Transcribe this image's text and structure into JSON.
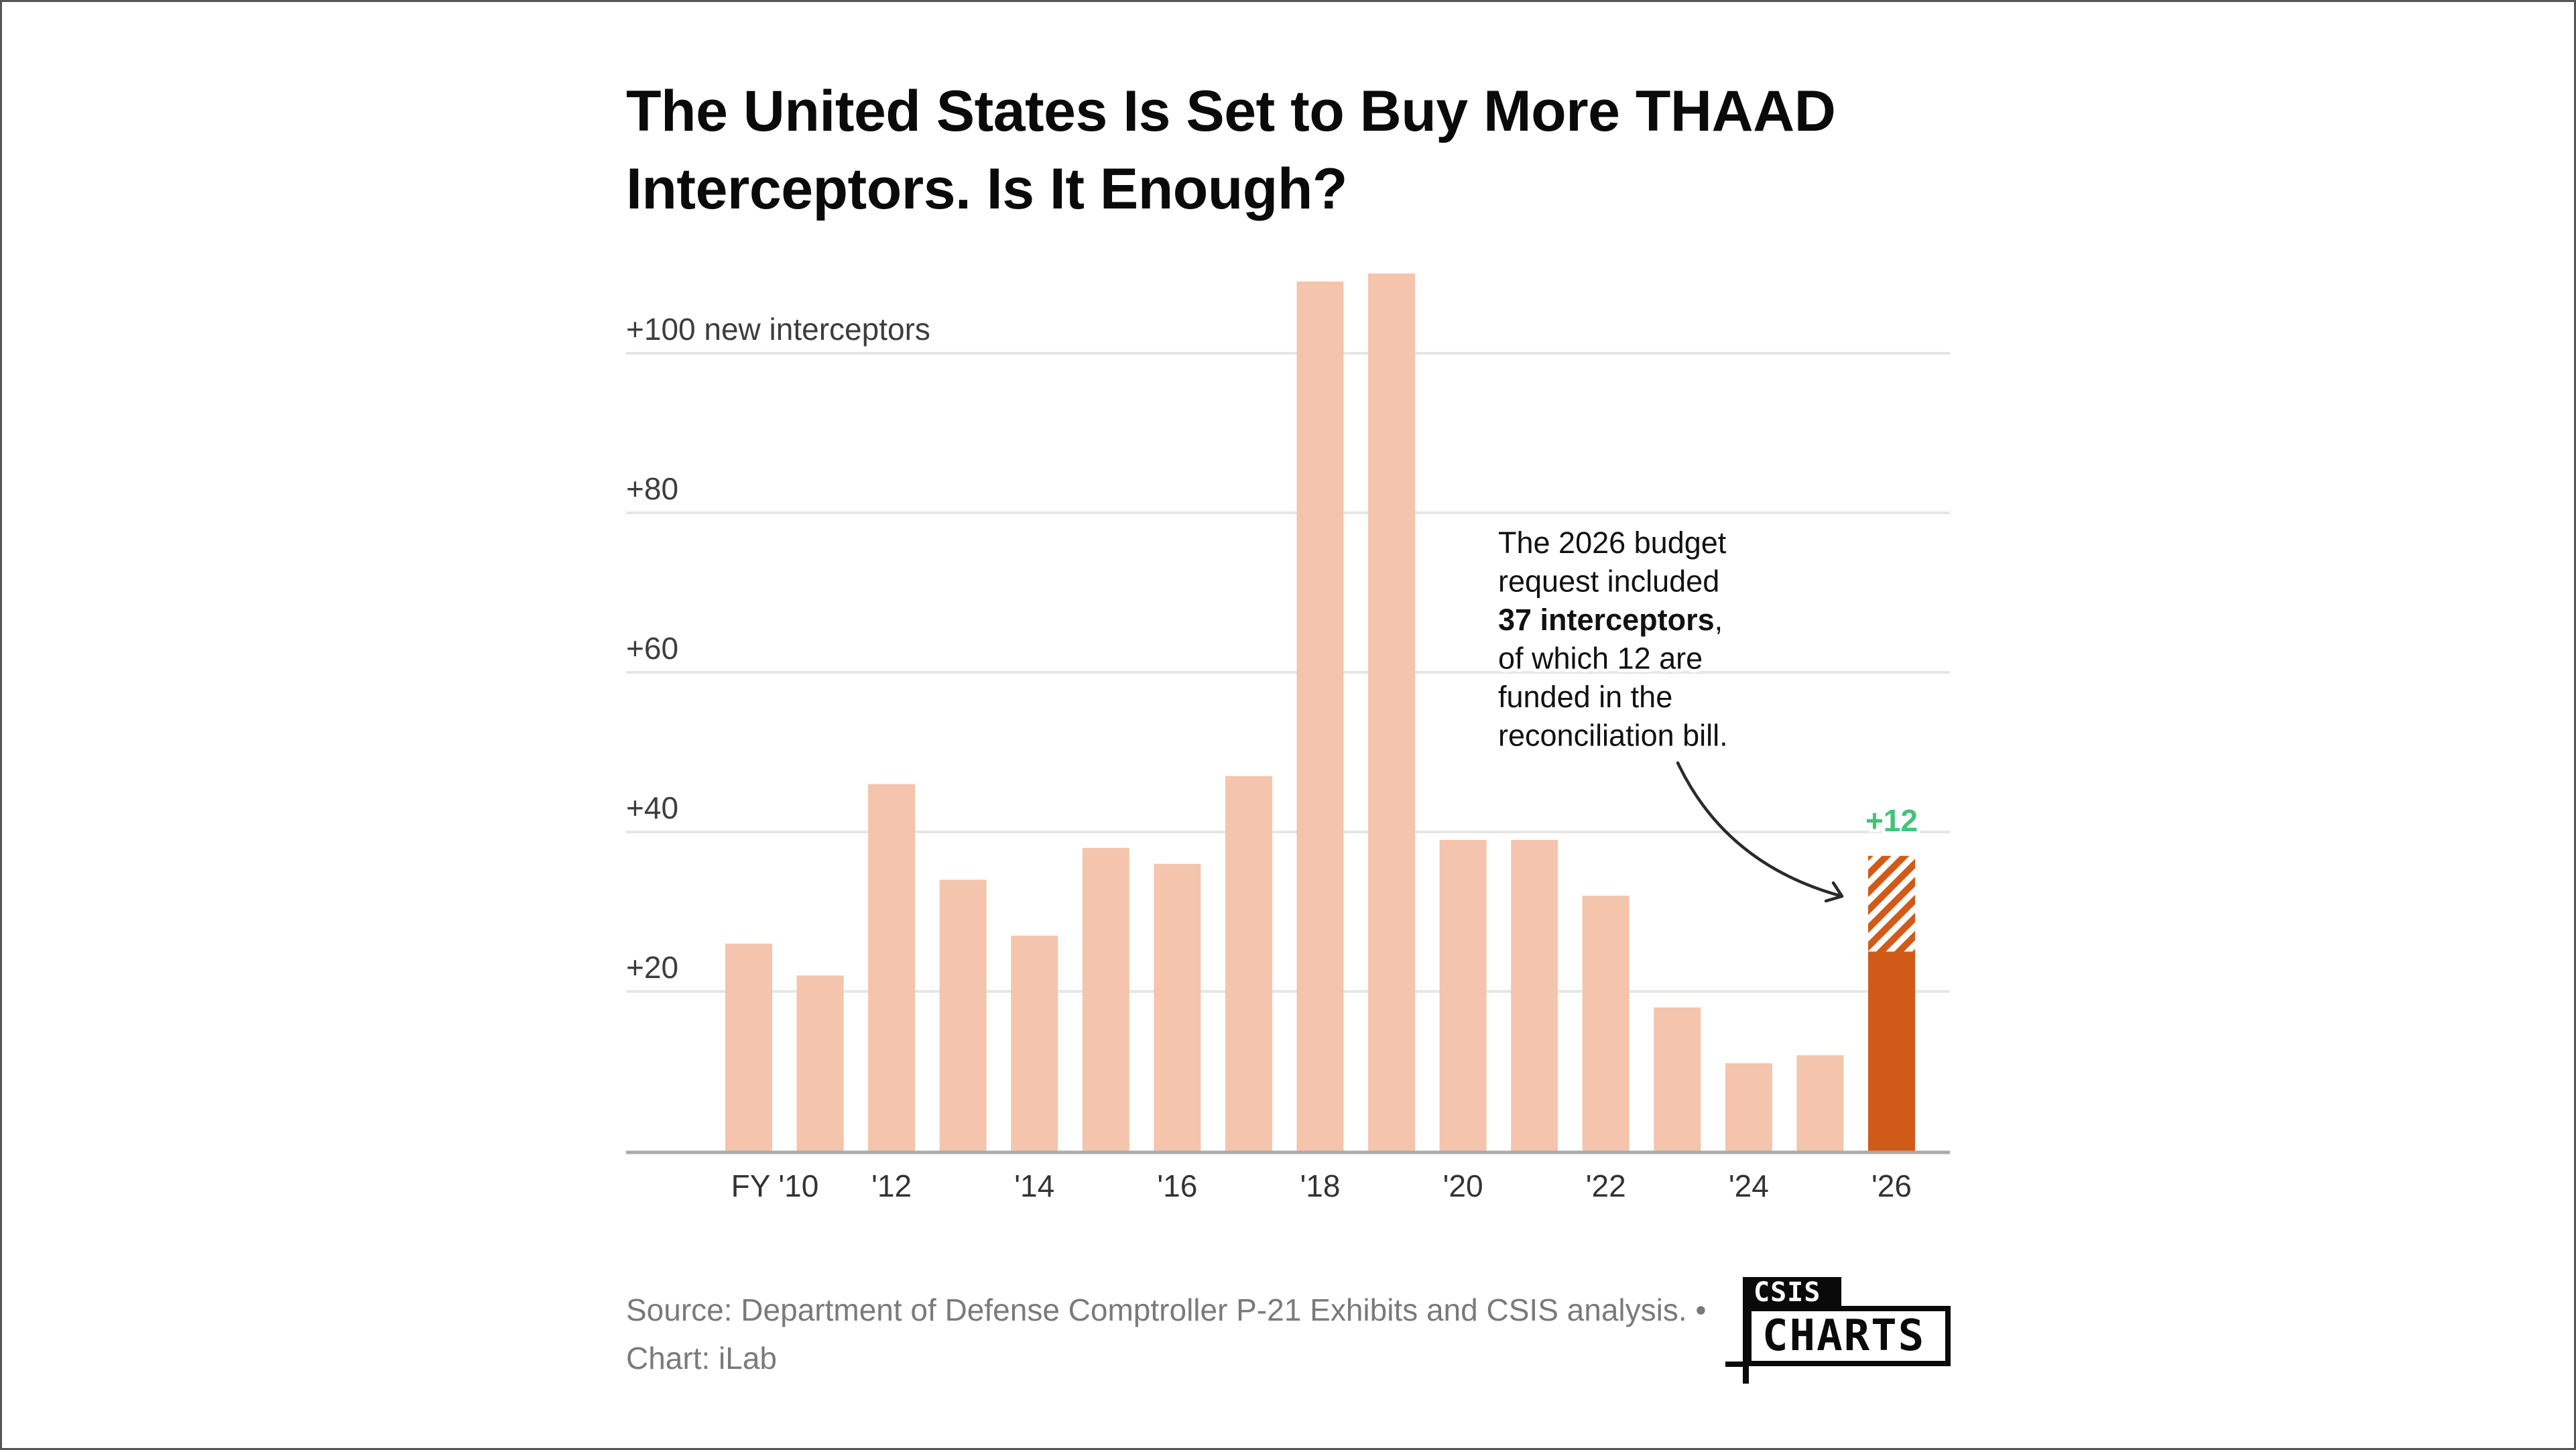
{
  "title": {
    "line1": "The United States Is Set to Buy More THAAD",
    "line2": "Interceptors. Is It Enough?"
  },
  "colors": {
    "bar": "#F4C4AC",
    "highlight_bar": "#D05A17",
    "delta_label": "#45C27A",
    "gridline": "#E6E6E6",
    "axis": "#AAAAAA",
    "arrow": "#2a2a2a"
  },
  "chart_data": {
    "type": "bar",
    "title": "The United States Is Set to Buy More THAAD Interceptors. Is It Enough?",
    "xlabel": "",
    "ylabel": "new interceptors",
    "ylim": [
      0,
      110
    ],
    "grid": true,
    "categories": [
      "2010",
      "2011",
      "2012",
      "2013",
      "2014",
      "2015",
      "2016",
      "2017",
      "2018",
      "2019",
      "2020",
      "2021",
      "2022",
      "2023",
      "2024",
      "2025",
      "2026"
    ],
    "values": [
      26,
      22,
      46,
      34,
      27,
      38,
      36,
      47,
      109,
      110,
      39,
      39,
      32,
      18,
      11,
      12,
      37
    ],
    "highlight": {
      "category": "2026",
      "base_value": 25,
      "reconciliation_value": 12,
      "total": 37,
      "delta_label": "+12"
    },
    "y_ticks": [
      {
        "value": 20,
        "label": "+20"
      },
      {
        "value": 40,
        "label": "+40"
      },
      {
        "value": 60,
        "label": "+60"
      },
      {
        "value": 80,
        "label": "+80"
      },
      {
        "value": 100,
        "label": "+100 new interceptors"
      }
    ],
    "x_ticks": [
      {
        "category": "2010",
        "label": "FY '10"
      },
      {
        "category": "2012",
        "label": "'12"
      },
      {
        "category": "2014",
        "label": "'14"
      },
      {
        "category": "2016",
        "label": "'16"
      },
      {
        "category": "2018",
        "label": "'18"
      },
      {
        "category": "2020",
        "label": "'20"
      },
      {
        "category": "2022",
        "label": "'22"
      },
      {
        "category": "2024",
        "label": "'24"
      },
      {
        "category": "2026",
        "label": "'26"
      }
    ],
    "annotation": {
      "lines": [
        {
          "text": "The 2026 budget",
          "bold": false
        },
        {
          "text": "request included",
          "bold": false
        },
        {
          "text": "37 interceptors",
          "bold": true,
          "suffix": ","
        },
        {
          "text": "of which 12 are",
          "bold": false
        },
        {
          "text": "funded in the",
          "bold": false
        },
        {
          "text": "reconciliation bill.",
          "bold": false
        }
      ],
      "points_to": "2026"
    }
  },
  "footer": {
    "source": "Source: Department of Defense Comptroller P-21 Exhibits and CSIS analysis. • Chart: iLab"
  },
  "logo": {
    "top": "CSIS",
    "bottom": "CHARTS"
  }
}
